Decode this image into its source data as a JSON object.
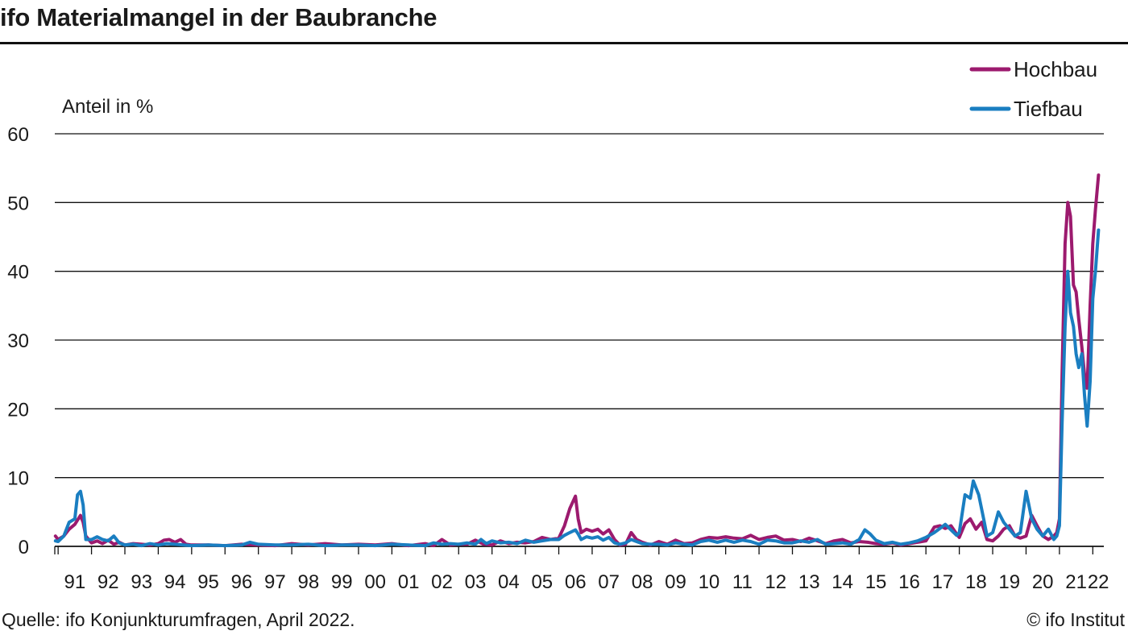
{
  "header": {
    "title": "ifo Materialmangel in der Baubranche"
  },
  "footer": {
    "source": "Quelle: ifo Konjunkturumfragen, April 2022.",
    "copyright": "© ifo Institut"
  },
  "chart_data": {
    "type": "line",
    "title": "ifo Materialmangel in der Baubranche",
    "ylabel": "Anteil in %",
    "xlabel": "",
    "ylim": [
      0,
      60
    ],
    "yticks": [
      0,
      10,
      20,
      30,
      40,
      50,
      60
    ],
    "xlim": [
      1990.9,
      2022.33
    ],
    "year_labels": [
      "91",
      "92",
      "93",
      "94",
      "95",
      "96",
      "97",
      "98",
      "99",
      "00",
      "01",
      "02",
      "03",
      "04",
      "05",
      "06",
      "07",
      "08",
      "09",
      "10",
      "11",
      "12",
      "13",
      "14",
      "15",
      "16",
      "17",
      "18",
      "19",
      "20",
      "21",
      "22"
    ],
    "grid": "horizontal",
    "legend_position": "top-right",
    "colors": {
      "Hochbau": "#9c1a6e",
      "Tiefbau": "#1a7ec1"
    },
    "series": [
      {
        "name": "Hochbau",
        "points": [
          [
            1990.92,
            1.5
          ],
          [
            1991.0,
            1.0
          ],
          [
            1991.17,
            1.5
          ],
          [
            1991.33,
            2.5
          ],
          [
            1991.5,
            3.2
          ],
          [
            1991.67,
            4.5
          ],
          [
            1991.75,
            3.5
          ],
          [
            1991.83,
            1.5
          ],
          [
            1992.0,
            0.5
          ],
          [
            1992.17,
            0.8
          ],
          [
            1992.33,
            0.4
          ],
          [
            1992.5,
            0.9
          ],
          [
            1992.67,
            0.3
          ],
          [
            1992.83,
            0.6
          ],
          [
            1993.0,
            0.2
          ],
          [
            1993.25,
            0.4
          ],
          [
            1993.5,
            0.3
          ],
          [
            1993.75,
            0.2
          ],
          [
            1994.0,
            0.4
          ],
          [
            1994.17,
            0.9
          ],
          [
            1994.33,
            1.0
          ],
          [
            1994.5,
            0.6
          ],
          [
            1994.67,
            1.0
          ],
          [
            1994.83,
            0.3
          ],
          [
            1995.0,
            0.2
          ],
          [
            1995.5,
            0.2
          ],
          [
            1996.0,
            0.1
          ],
          [
            1996.5,
            0.3
          ],
          [
            1997.0,
            0.2
          ],
          [
            1997.5,
            0.1
          ],
          [
            1998.0,
            0.4
          ],
          [
            1998.5,
            0.2
          ],
          [
            1999.0,
            0.4
          ],
          [
            1999.5,
            0.2
          ],
          [
            2000.0,
            0.3
          ],
          [
            2000.5,
            0.2
          ],
          [
            2001.0,
            0.4
          ],
          [
            2001.5,
            0.1
          ],
          [
            2002.0,
            0.4
          ],
          [
            2002.25,
            0.1
          ],
          [
            2002.5,
            1.0
          ],
          [
            2002.75,
            0.2
          ],
          [
            2003.0,
            0.3
          ],
          [
            2003.25,
            0.3
          ],
          [
            2003.5,
            0.9
          ],
          [
            2003.75,
            0.3
          ],
          [
            2004.0,
            0.2
          ],
          [
            2004.25,
            0.8
          ],
          [
            2004.5,
            0.4
          ],
          [
            2004.75,
            0.6
          ],
          [
            2005.0,
            0.5
          ],
          [
            2005.25,
            0.7
          ],
          [
            2005.5,
            1.3
          ],
          [
            2005.75,
            1.0
          ],
          [
            2006.0,
            1.2
          ],
          [
            2006.17,
            3.0
          ],
          [
            2006.33,
            5.5
          ],
          [
            2006.5,
            7.3
          ],
          [
            2006.58,
            4.0
          ],
          [
            2006.67,
            2.0
          ],
          [
            2006.83,
            2.5
          ],
          [
            2007.0,
            2.2
          ],
          [
            2007.17,
            2.5
          ],
          [
            2007.33,
            1.8
          ],
          [
            2007.5,
            2.4
          ],
          [
            2007.67,
            1.0
          ],
          [
            2007.83,
            0.2
          ],
          [
            2008.0,
            0.3
          ],
          [
            2008.17,
            2.0
          ],
          [
            2008.33,
            1.0
          ],
          [
            2008.5,
            0.6
          ],
          [
            2008.75,
            0.2
          ],
          [
            2009.0,
            0.7
          ],
          [
            2009.25,
            0.3
          ],
          [
            2009.5,
            0.9
          ],
          [
            2009.75,
            0.4
          ],
          [
            2010.0,
            0.5
          ],
          [
            2010.25,
            1.0
          ],
          [
            2010.5,
            1.3
          ],
          [
            2010.75,
            1.2
          ],
          [
            2011.0,
            1.4
          ],
          [
            2011.25,
            1.2
          ],
          [
            2011.5,
            1.1
          ],
          [
            2011.75,
            1.6
          ],
          [
            2012.0,
            1.0
          ],
          [
            2012.25,
            1.3
          ],
          [
            2012.5,
            1.5
          ],
          [
            2012.75,
            0.9
          ],
          [
            2013.0,
            1.0
          ],
          [
            2013.25,
            0.7
          ],
          [
            2013.5,
            1.2
          ],
          [
            2013.75,
            0.8
          ],
          [
            2014.0,
            0.4
          ],
          [
            2014.25,
            0.8
          ],
          [
            2014.5,
            1.0
          ],
          [
            2014.75,
            0.5
          ],
          [
            2015.0,
            0.7
          ],
          [
            2015.25,
            0.6
          ],
          [
            2015.5,
            0.4
          ],
          [
            2015.75,
            0.3
          ],
          [
            2016.0,
            0.5
          ],
          [
            2016.25,
            0.2
          ],
          [
            2016.5,
            0.4
          ],
          [
            2016.75,
            0.6
          ],
          [
            2017.0,
            0.8
          ],
          [
            2017.25,
            2.8
          ],
          [
            2017.42,
            3.0
          ],
          [
            2017.58,
            2.6
          ],
          [
            2017.75,
            3.0
          ],
          [
            2017.92,
            1.8
          ],
          [
            2018.0,
            1.3
          ],
          [
            2018.17,
            3.3
          ],
          [
            2018.33,
            4.0
          ],
          [
            2018.5,
            2.5
          ],
          [
            2018.67,
            3.5
          ],
          [
            2018.83,
            1.0
          ],
          [
            2019.0,
            0.8
          ],
          [
            2019.17,
            1.5
          ],
          [
            2019.33,
            2.5
          ],
          [
            2019.5,
            3.0
          ],
          [
            2019.67,
            1.5
          ],
          [
            2019.83,
            1.2
          ],
          [
            2020.0,
            1.5
          ],
          [
            2020.17,
            4.5
          ],
          [
            2020.33,
            3.0
          ],
          [
            2020.5,
            1.5
          ],
          [
            2020.67,
            1.0
          ],
          [
            2020.83,
            1.5
          ],
          [
            2020.92,
            2.0
          ],
          [
            2021.0,
            4.0
          ],
          [
            2021.08,
            25.0
          ],
          [
            2021.17,
            44.0
          ],
          [
            2021.25,
            50.0
          ],
          [
            2021.33,
            48.0
          ],
          [
            2021.42,
            38.0
          ],
          [
            2021.5,
            37.0
          ],
          [
            2021.58,
            33.0
          ],
          [
            2021.67,
            29.0
          ],
          [
            2021.75,
            25.0
          ],
          [
            2021.83,
            23.0
          ],
          [
            2021.92,
            35.0
          ],
          [
            2022.0,
            44.0
          ],
          [
            2022.08,
            49.0
          ],
          [
            2022.17,
            54.0
          ]
        ]
      },
      {
        "name": "Tiefbau",
        "points": [
          [
            1990.92,
            0.8
          ],
          [
            1991.0,
            0.7
          ],
          [
            1991.17,
            1.5
          ],
          [
            1991.33,
            3.5
          ],
          [
            1991.5,
            4.0
          ],
          [
            1991.58,
            7.5
          ],
          [
            1991.67,
            8.0
          ],
          [
            1991.75,
            6.0
          ],
          [
            1991.83,
            1.0
          ],
          [
            1992.0,
            1.0
          ],
          [
            1992.17,
            1.4
          ],
          [
            1992.33,
            1.0
          ],
          [
            1992.5,
            0.8
          ],
          [
            1992.67,
            1.5
          ],
          [
            1992.83,
            0.5
          ],
          [
            1993.0,
            0.2
          ],
          [
            1993.25,
            0.3
          ],
          [
            1993.5,
            0.1
          ],
          [
            1993.75,
            0.4
          ],
          [
            1994.0,
            0.2
          ],
          [
            1994.25,
            0.4
          ],
          [
            1994.5,
            0.3
          ],
          [
            1994.75,
            0.2
          ],
          [
            1995.0,
            0.1
          ],
          [
            1995.5,
            0.2
          ],
          [
            1996.0,
            0.1
          ],
          [
            1996.5,
            0.2
          ],
          [
            1996.75,
            0.6
          ],
          [
            1997.0,
            0.3
          ],
          [
            1997.5,
            0.2
          ],
          [
            1998.0,
            0.2
          ],
          [
            1998.5,
            0.3
          ],
          [
            1999.0,
            0.1
          ],
          [
            1999.5,
            0.2
          ],
          [
            2000.0,
            0.2
          ],
          [
            2000.5,
            0.1
          ],
          [
            2001.0,
            0.3
          ],
          [
            2001.5,
            0.2
          ],
          [
            2002.0,
            0.1
          ],
          [
            2002.25,
            0.5
          ],
          [
            2002.5,
            0.3
          ],
          [
            2002.75,
            0.4
          ],
          [
            2003.0,
            0.3
          ],
          [
            2003.25,
            0.5
          ],
          [
            2003.5,
            0.3
          ],
          [
            2003.67,
            1.0
          ],
          [
            2003.83,
            0.4
          ],
          [
            2004.0,
            0.8
          ],
          [
            2004.25,
            0.5
          ],
          [
            2004.5,
            0.6
          ],
          [
            2004.75,
            0.4
          ],
          [
            2005.0,
            0.9
          ],
          [
            2005.25,
            0.6
          ],
          [
            2005.5,
            0.8
          ],
          [
            2005.75,
            1.0
          ],
          [
            2006.0,
            1.0
          ],
          [
            2006.17,
            1.6
          ],
          [
            2006.33,
            2.0
          ],
          [
            2006.5,
            2.4
          ],
          [
            2006.58,
            1.8
          ],
          [
            2006.67,
            1.0
          ],
          [
            2006.83,
            1.4
          ],
          [
            2007.0,
            1.2
          ],
          [
            2007.17,
            1.4
          ],
          [
            2007.33,
            0.9
          ],
          [
            2007.5,
            1.3
          ],
          [
            2007.67,
            0.5
          ],
          [
            2007.83,
            0.3
          ],
          [
            2008.0,
            0.5
          ],
          [
            2008.17,
            1.0
          ],
          [
            2008.33,
            0.7
          ],
          [
            2008.5,
            0.4
          ],
          [
            2008.75,
            0.3
          ],
          [
            2009.0,
            0.3
          ],
          [
            2009.25,
            0.2
          ],
          [
            2009.5,
            0.5
          ],
          [
            2009.75,
            0.3
          ],
          [
            2010.0,
            0.2
          ],
          [
            2010.25,
            0.7
          ],
          [
            2010.5,
            0.9
          ],
          [
            2010.75,
            0.6
          ],
          [
            2011.0,
            0.9
          ],
          [
            2011.25,
            0.6
          ],
          [
            2011.5,
            0.9
          ],
          [
            2011.75,
            0.7
          ],
          [
            2012.0,
            0.3
          ],
          [
            2012.25,
            0.9
          ],
          [
            2012.5,
            0.8
          ],
          [
            2012.75,
            0.5
          ],
          [
            2013.0,
            0.5
          ],
          [
            2013.25,
            0.8
          ],
          [
            2013.5,
            0.6
          ],
          [
            2013.75,
            1.0
          ],
          [
            2014.0,
            0.3
          ],
          [
            2014.25,
            0.4
          ],
          [
            2014.5,
            0.5
          ],
          [
            2014.75,
            0.3
          ],
          [
            2015.0,
            1.0
          ],
          [
            2015.17,
            2.4
          ],
          [
            2015.33,
            1.8
          ],
          [
            2015.5,
            0.9
          ],
          [
            2015.75,
            0.4
          ],
          [
            2016.0,
            0.6
          ],
          [
            2016.25,
            0.3
          ],
          [
            2016.5,
            0.5
          ],
          [
            2016.75,
            0.8
          ],
          [
            2017.0,
            1.3
          ],
          [
            2017.25,
            2.0
          ],
          [
            2017.42,
            2.6
          ],
          [
            2017.58,
            3.2
          ],
          [
            2017.75,
            2.4
          ],
          [
            2017.92,
            1.6
          ],
          [
            2018.0,
            2.0
          ],
          [
            2018.17,
            7.5
          ],
          [
            2018.33,
            7.0
          ],
          [
            2018.42,
            9.5
          ],
          [
            2018.58,
            7.5
          ],
          [
            2018.75,
            3.5
          ],
          [
            2018.83,
            1.5
          ],
          [
            2019.0,
            2.0
          ],
          [
            2019.17,
            5.0
          ],
          [
            2019.33,
            3.5
          ],
          [
            2019.5,
            2.5
          ],
          [
            2019.67,
            1.5
          ],
          [
            2019.83,
            2.0
          ],
          [
            2020.0,
            8.0
          ],
          [
            2020.17,
            4.0
          ],
          [
            2020.33,
            2.5
          ],
          [
            2020.5,
            1.5
          ],
          [
            2020.67,
            2.5
          ],
          [
            2020.83,
            1.0
          ],
          [
            2020.92,
            1.5
          ],
          [
            2021.0,
            3.0
          ],
          [
            2021.08,
            18.0
          ],
          [
            2021.17,
            32.0
          ],
          [
            2021.25,
            40.0
          ],
          [
            2021.33,
            34.0
          ],
          [
            2021.42,
            32.0
          ],
          [
            2021.5,
            28.0
          ],
          [
            2021.58,
            26.0
          ],
          [
            2021.67,
            28.0
          ],
          [
            2021.75,
            22.0
          ],
          [
            2021.83,
            17.5
          ],
          [
            2021.92,
            24.0
          ],
          [
            2022.0,
            36.0
          ],
          [
            2022.08,
            40.0
          ],
          [
            2022.17,
            46.0
          ]
        ]
      }
    ]
  }
}
